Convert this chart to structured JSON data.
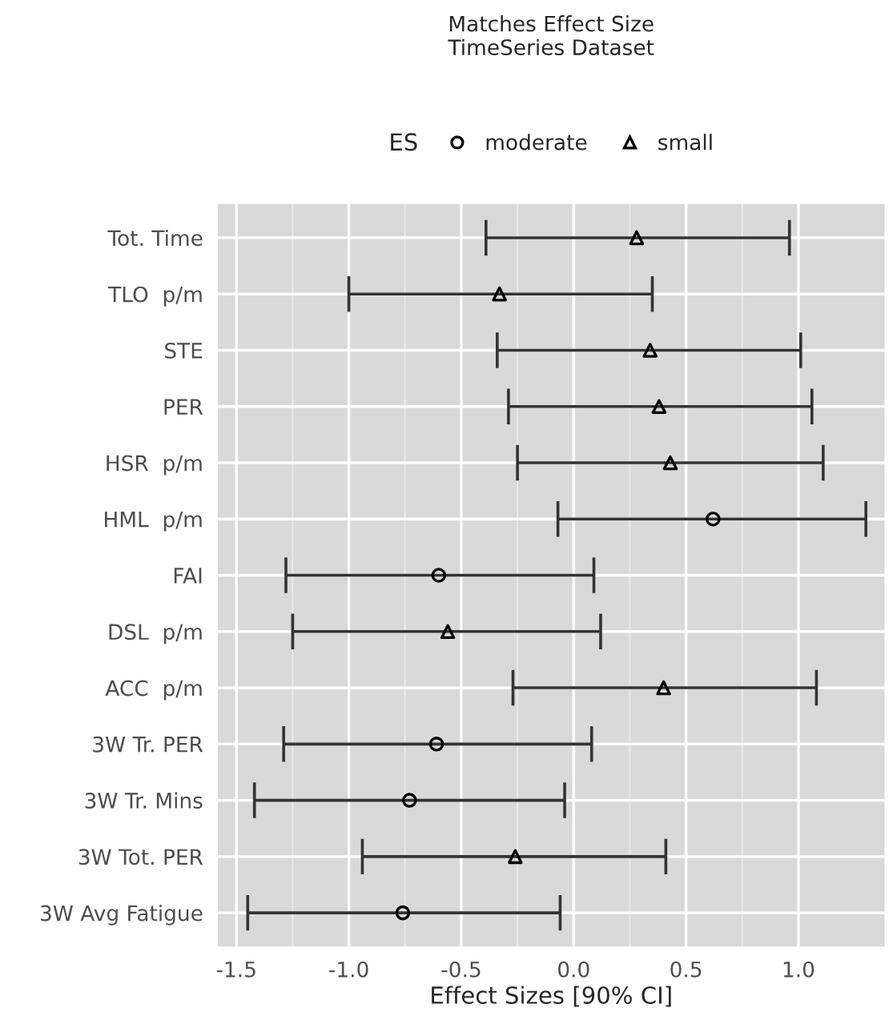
{
  "chart_data": {
    "type": "scatter",
    "orientation": "horizontal",
    "title": "Matches Effect Size\nTimeSeries Dataset",
    "xlabel": "Effect Sizes [90% CI]",
    "legend_title": "ES",
    "legend": "top",
    "categories": [
      "Tot. Time",
      "TLO  p/m",
      "STE",
      "PER",
      "HSR  p/m",
      "HML  p/m",
      "FAI",
      "DSL  p/m",
      "ACC  p/m",
      "3W Tr. PER",
      "3W Tr. Mins",
      "3W Tot. PER",
      "3W Avg Fatigue"
    ],
    "series": [
      {
        "name": "moderate",
        "color": "#000000",
        "marker": "circle",
        "values": [
          null,
          null,
          null,
          null,
          null,
          0.62,
          -0.6,
          null,
          null,
          -0.61,
          -0.73,
          null,
          -0.76
        ],
        "errors": [
          null,
          null,
          null,
          null,
          null,
          [
            -0.07,
            1.3
          ],
          [
            -1.28,
            0.09
          ],
          null,
          null,
          [
            -1.29,
            0.08
          ],
          [
            -1.42,
            -0.04
          ],
          null,
          [
            -1.45,
            -0.06
          ]
        ]
      },
      {
        "name": "small",
        "color": "#000000",
        "marker": "triangle",
        "values": [
          0.28,
          -0.33,
          0.34,
          0.38,
          0.43,
          null,
          null,
          -0.56,
          0.4,
          null,
          null,
          -0.26,
          null
        ],
        "errors": [
          [
            -0.39,
            0.96
          ],
          [
            -1.0,
            0.35
          ],
          [
            -0.34,
            1.01
          ],
          [
            -0.29,
            1.06
          ],
          [
            -0.25,
            1.11
          ],
          null,
          null,
          [
            -1.25,
            0.12
          ],
          [
            -0.27,
            1.08
          ],
          null,
          null,
          [
            -0.94,
            0.41
          ],
          null
        ]
      }
    ],
    "xlim": [
      -1.583,
      1.383
    ],
    "xticks": [
      -1.5,
      {
        "value": -1,
        "label": "-1.0"
      },
      -0.5,
      {
        "value": 0,
        "label": "0.0"
      },
      0.5,
      {
        "value": 1,
        "label": "1.0"
      }
    ],
    "grid": true
  }
}
